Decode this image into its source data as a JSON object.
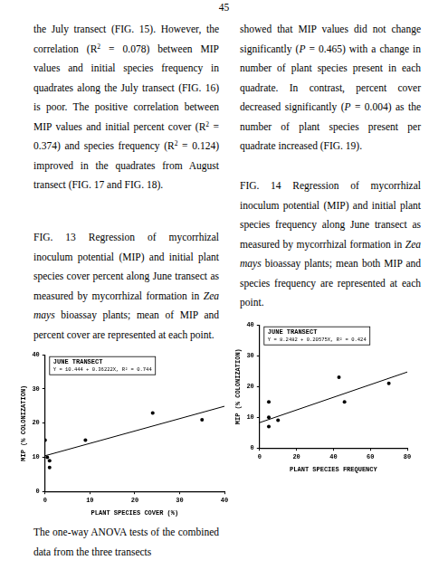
{
  "page_number": "45",
  "left_column": {
    "paragraph": [
      "the July transect (FIG. 15). However, the correlation (R",
      {
        "text": "2",
        "style": "sup"
      },
      " = 0.078) between MIP values and initial species frequency in quadrates along the July transect (FIG. 16) is poor. The positive correlation between MIP values and initial percent cover (R",
      {
        "text": "2",
        "style": "sup"
      },
      " = 0.374) and species frequency (R",
      {
        "text": "2",
        "style": "sup"
      },
      " = 0.124) improved in the quadrates from August transect (FIG. 17 and FIG. 18)."
    ],
    "caption": [
      "FIG. 13 Regression of mycorrhizal inoculum potential (MIP) and initial plant species cover percent along June transect as measured by mycorrhizal formation in ",
      {
        "text": "Zea mays",
        "style": "italic"
      },
      " bioassay plants; mean of MIP and percent cover are represented at each point."
    ],
    "after_chart": [
      "The one-way ANOVA tests of the combined data from the three transects"
    ]
  },
  "right_column": {
    "paragraph": [
      "showed that MIP values did not change significantly (",
      {
        "text": "P",
        "style": "italic"
      },
      " = 0.465) with a change in number of plant species present in each quadrate. In contrast, percent cover decreased significantly (",
      {
        "text": "P",
        "style": "italic"
      },
      " = 0.004) as the number of plant species present per quadrate increased (FIG. 19)."
    ],
    "caption": [
      "FIG. 14 Regression of mycorrhizal inoculum potential (MIP) and initial plant species frequency along June transect as measured by mycorrhizal formation in ",
      {
        "text": "Zea mays",
        "style": "italic"
      },
      " bioassay plants; mean both MIP and species frequency are represented at each point."
    ]
  },
  "chart_data": [
    {
      "type": "scatter",
      "title": "JUNE TRANSECT",
      "annotation": "Y = 10.444 + 0.36222X, R² = 0.744",
      "x_label": "PLANT SPECIES COVER (%)",
      "y_label": "MIP (% COLONIZATION)",
      "xlim": [
        0,
        40
      ],
      "xticks": [
        0,
        10,
        20,
        30,
        40
      ],
      "ylim": [
        0,
        40
      ],
      "yticks": [
        0,
        10,
        20,
        30,
        40
      ],
      "grid": false,
      "series": [
        {
          "type": "scatter",
          "marker": "circle",
          "color": "#000000",
          "x": [
            0,
            0.5,
            1,
            1,
            9,
            24,
            35
          ],
          "values": [
            15,
            10,
            9,
            7,
            15,
            23,
            21
          ]
        },
        {
          "type": "line",
          "line_style": "solid",
          "color": "#000000",
          "x": [
            0,
            40
          ],
          "values": [
            10.444,
            24.933
          ]
        }
      ]
    },
    {
      "type": "scatter",
      "title": "JUNE TRANSECT",
      "annotation": "Y = 8.2482 + 0.20575X, R² = 0.424",
      "x_label": "PLANT SPECIES FREQUENCY",
      "y_label": "MIP (% COLONIZATION)",
      "xlim": [
        0,
        80
      ],
      "xticks": [
        0,
        20,
        40,
        60,
        80
      ],
      "ylim": [
        0,
        40
      ],
      "yticks": [
        0,
        10,
        20,
        30,
        40
      ],
      "grid": false,
      "series": [
        {
          "type": "scatter",
          "marker": "circle",
          "color": "#000000",
          "x": [
            5,
            5,
            5,
            10,
            43,
            46,
            70
          ],
          "values": [
            7,
            10,
            15,
            9,
            23,
            15,
            21
          ]
        },
        {
          "type": "line",
          "line_style": "solid",
          "color": "#000000",
          "x": [
            0,
            80
          ],
          "values": [
            8.248,
            24.708
          ]
        }
      ]
    }
  ]
}
